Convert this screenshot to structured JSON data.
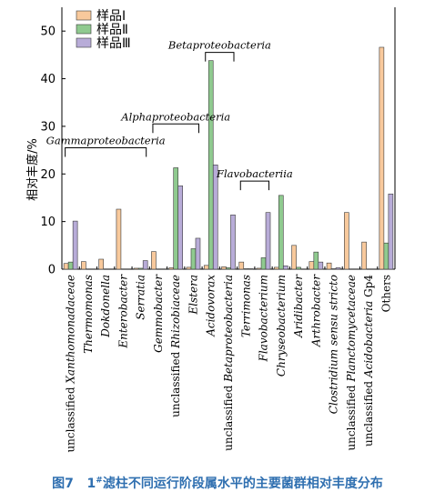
{
  "caption": {
    "fig": "图7",
    "num": "1",
    "sup": "#",
    "rest": "滤柱不同运行阶段属水平的主要菌群相对丰度分布"
  },
  "chart_data": {
    "type": "bar",
    "ylabel": "相对丰度/%",
    "ylim": [
      0,
      55
    ],
    "yticks": [
      0,
      10,
      20,
      30,
      40,
      50
    ],
    "grid": false,
    "legend_position": "top-left",
    "categories": [
      {
        "label": "unclassified Xanthomonadaceae",
        "prefix": "unclassified ",
        "italic": "Xanthomonadaceae",
        "suffix": ""
      },
      {
        "label": "Thermomonas",
        "prefix": "",
        "italic": "Thermomonas",
        "suffix": ""
      },
      {
        "label": "Dokdonella",
        "prefix": "",
        "italic": "Dokdonella",
        "suffix": ""
      },
      {
        "label": "Enterobacter",
        "prefix": "",
        "italic": "Enterobacter",
        "suffix": ""
      },
      {
        "label": "Serratia",
        "prefix": "",
        "italic": "Serratia",
        "suffix": ""
      },
      {
        "label": "Gemmobacter",
        "prefix": "",
        "italic": "Gemmobacter",
        "suffix": ""
      },
      {
        "label": "unclassified Rhizobiaceae",
        "prefix": "unclassified ",
        "italic": "Rhizobiaceae",
        "suffix": ""
      },
      {
        "label": "Elstera",
        "prefix": "",
        "italic": "Elstera",
        "suffix": ""
      },
      {
        "label": "Acidovorax",
        "prefix": "",
        "italic": "Acidovorax",
        "suffix": ""
      },
      {
        "label": "unclassified Betaproteobacteria",
        "prefix": "unclassified ",
        "italic": "Betaproteobacteria",
        "suffix": ""
      },
      {
        "label": "Terrimonas",
        "prefix": "",
        "italic": "Terrimonas",
        "suffix": ""
      },
      {
        "label": "Flavobacterium",
        "prefix": "",
        "italic": "Flavobacterium",
        "suffix": ""
      },
      {
        "label": "Chryseobacterium",
        "prefix": "",
        "italic": "Chryseobacterium",
        "suffix": ""
      },
      {
        "label": "Aridibacter",
        "prefix": "",
        "italic": "Aridibacter",
        "suffix": ""
      },
      {
        "label": "Arthrobacter",
        "prefix": "",
        "italic": "Arthrobacter",
        "suffix": ""
      },
      {
        "label": "Clostridium sensu stricto",
        "prefix": "",
        "italic": "Clostridium sensu stricto",
        "suffix": ""
      },
      {
        "label": "unclassified Planctomycetaceae",
        "prefix": "unclassified ",
        "italic": "Planctomycetaceae",
        "suffix": ""
      },
      {
        "label": "unclassified Acidobacteria Gp4",
        "prefix": "unclassified ",
        "italic": "Acidobacteria",
        "suffix": " Gp4"
      },
      {
        "label": "Others",
        "prefix": "Others",
        "italic": "",
        "suffix": ""
      }
    ],
    "series": [
      {
        "name": "样品Ⅰ",
        "color": "#f8c99c",
        "values": [
          1.2,
          1.6,
          2.1,
          12.6,
          0.2,
          3.7,
          0.3,
          0.4,
          0.8,
          0.5,
          1.5,
          0.2,
          0.4,
          5.0,
          1.6,
          1.3,
          11.9,
          5.7,
          46.6
        ]
      },
      {
        "name": "样品Ⅱ",
        "color": "#8fca8f",
        "values": [
          1.5,
          0,
          0,
          0,
          0.2,
          0,
          21.3,
          4.3,
          43.8,
          0.3,
          0.1,
          2.4,
          15.5,
          0.4,
          3.6,
          0.1,
          0,
          0,
          5.5
        ]
      },
      {
        "name": "样品Ⅲ",
        "color": "#b8acd8",
        "values": [
          10.1,
          0,
          0,
          0,
          1.8,
          0,
          17.5,
          6.5,
          21.9,
          11.4,
          0.1,
          11.9,
          0.7,
          0,
          1.5,
          0.3,
          0,
          0,
          15.8
        ]
      }
    ],
    "groups": [
      {
        "label": "Gammaproteobacteria",
        "from": 0,
        "to": 4,
        "level": 1
      },
      {
        "label": "Alphaproteobacteria",
        "from": 5,
        "to": 7,
        "level": 2
      },
      {
        "label": "Betaproteobacteria",
        "from": 8,
        "to": 9,
        "level": 1
      },
      {
        "label": "Flavobacteriia",
        "from": 10,
        "to": 11,
        "level": 0
      }
    ]
  }
}
